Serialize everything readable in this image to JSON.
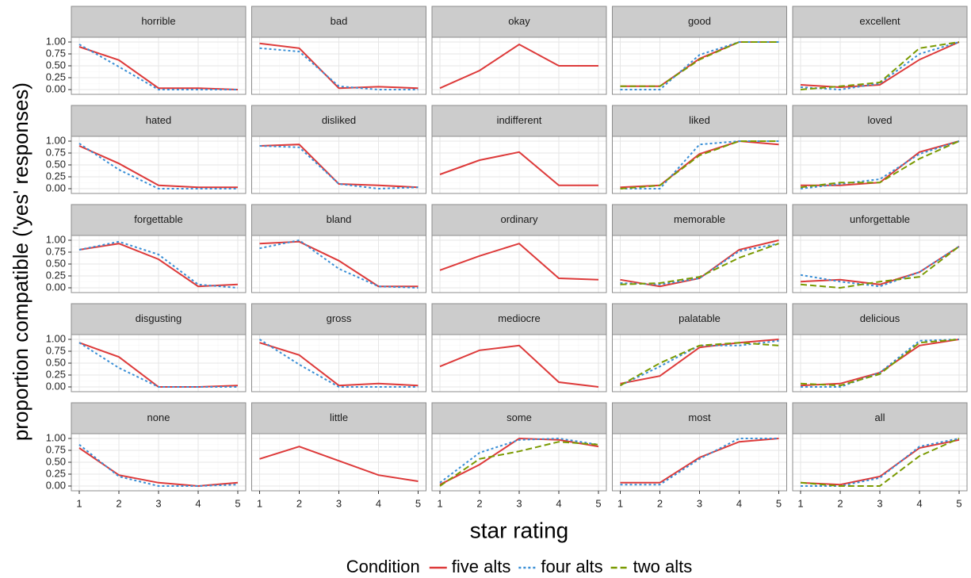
{
  "chart_data": {
    "type": "line",
    "xlabel": "star rating",
    "ylabel": "proportion compatible ('yes' responses)",
    "legend_title": "Condition",
    "x": [
      1,
      2,
      3,
      4,
      5
    ],
    "xlim": [
      0.8,
      5.2
    ],
    "xticks": [
      1,
      2,
      3,
      4,
      5
    ],
    "ylim": [
      -0.1,
      1.1
    ],
    "yticks": [
      {
        "value": 0,
        "label": "0.00"
      },
      {
        "value": 0.25,
        "label": "0.25"
      },
      {
        "value": 0.5,
        "label": "0.50"
      },
      {
        "value": 0.75,
        "label": "0.75"
      },
      {
        "value": 1,
        "label": "1.00"
      }
    ],
    "grid": true,
    "series": [
      {
        "name": "five alts",
        "color": "#dd3a3a",
        "linestyle": "solid"
      },
      {
        "name": "four alts",
        "color": "#3a8fd6",
        "linestyle": "dotted"
      },
      {
        "name": "two alts",
        "color": "#7a9a01",
        "linestyle": "dashed"
      }
    ],
    "facets": [
      {
        "title": "horrible",
        "values": [
          [
            0.9,
            0.62,
            0.03,
            0.03,
            0.0
          ],
          [
            0.95,
            0.48,
            0.0,
            0.0,
            0.0
          ],
          null
        ]
      },
      {
        "title": "bad",
        "values": [
          [
            0.97,
            0.87,
            0.03,
            0.06,
            0.03
          ],
          [
            0.87,
            0.8,
            0.07,
            0.0,
            0.0
          ],
          null
        ]
      },
      {
        "title": "okay",
        "values": [
          [
            0.03,
            0.4,
            0.95,
            0.5,
            0.5
          ],
          null,
          null
        ]
      },
      {
        "title": "good",
        "values": [
          [
            0.07,
            0.07,
            0.65,
            1.0,
            1.0
          ],
          [
            0.0,
            0.0,
            0.73,
            1.0,
            1.0
          ],
          [
            0.07,
            0.07,
            0.63,
            1.0,
            1.0
          ]
        ]
      },
      {
        "title": "excellent",
        "values": [
          [
            0.1,
            0.05,
            0.1,
            0.63,
            1.0
          ],
          [
            0.05,
            0.0,
            0.13,
            0.75,
            1.0
          ],
          [
            0.0,
            0.07,
            0.15,
            0.87,
            1.0
          ]
        ]
      },
      {
        "title": "hated",
        "values": [
          [
            0.9,
            0.53,
            0.07,
            0.03,
            0.03
          ],
          [
            0.95,
            0.4,
            0.0,
            0.0,
            0.0
          ],
          null
        ]
      },
      {
        "title": "disliked",
        "values": [
          [
            0.9,
            0.93,
            0.1,
            0.07,
            0.03
          ],
          [
            0.9,
            0.87,
            0.1,
            0.0,
            0.03
          ],
          null
        ]
      },
      {
        "title": "indifferent",
        "values": [
          [
            0.3,
            0.6,
            0.77,
            0.07,
            0.07
          ],
          null,
          null
        ]
      },
      {
        "title": "liked",
        "values": [
          [
            0.03,
            0.07,
            0.73,
            1.0,
            0.93
          ],
          [
            0.0,
            0.0,
            0.93,
            1.0,
            1.0
          ],
          [
            0.0,
            0.07,
            0.7,
            1.0,
            1.0
          ]
        ]
      },
      {
        "title": "loved",
        "values": [
          [
            0.07,
            0.07,
            0.13,
            0.77,
            1.0
          ],
          [
            0.0,
            0.1,
            0.2,
            0.73,
            1.0
          ],
          [
            0.03,
            0.13,
            0.13,
            0.63,
            1.0
          ]
        ]
      },
      {
        "title": "forgettable",
        "values": [
          [
            0.8,
            0.93,
            0.6,
            0.03,
            0.07
          ],
          [
            0.8,
            0.97,
            0.7,
            0.07,
            0.0
          ],
          null
        ]
      },
      {
        "title": "bland",
        "values": [
          [
            0.93,
            0.97,
            0.57,
            0.03,
            0.03
          ],
          [
            0.83,
            1.0,
            0.4,
            0.03,
            0.0
          ],
          null
        ]
      },
      {
        "title": "ordinary",
        "values": [
          [
            0.37,
            0.67,
            0.93,
            0.2,
            0.17
          ],
          null,
          null
        ]
      },
      {
        "title": "memorable",
        "values": [
          [
            0.17,
            0.03,
            0.2,
            0.8,
            1.0
          ],
          [
            0.1,
            0.07,
            0.2,
            0.77,
            0.93
          ],
          [
            0.07,
            0.1,
            0.23,
            0.63,
            0.93
          ]
        ]
      },
      {
        "title": "unforgettable",
        "values": [
          [
            0.13,
            0.17,
            0.07,
            0.33,
            0.87
          ],
          [
            0.27,
            0.13,
            0.03,
            0.33,
            0.87
          ],
          [
            0.07,
            0.0,
            0.13,
            0.23,
            0.87
          ]
        ]
      },
      {
        "title": "disgusting",
        "values": [
          [
            0.93,
            0.63,
            0.0,
            0.0,
            0.03
          ],
          [
            0.93,
            0.4,
            0.0,
            0.0,
            0.0
          ],
          null
        ]
      },
      {
        "title": "gross",
        "values": [
          [
            0.93,
            0.67,
            0.03,
            0.07,
            0.03
          ],
          [
            1.0,
            0.47,
            0.0,
            0.0,
            0.0
          ],
          null
        ]
      },
      {
        "title": "mediocre",
        "values": [
          [
            0.43,
            0.77,
            0.87,
            0.1,
            0.0
          ],
          null,
          null
        ]
      },
      {
        "title": "palatable",
        "values": [
          [
            0.07,
            0.23,
            0.83,
            0.93,
            1.0
          ],
          [
            0.03,
            0.43,
            0.87,
            0.87,
            0.97
          ],
          [
            0.03,
            0.5,
            0.87,
            0.93,
            0.87
          ]
        ]
      },
      {
        "title": "delicious",
        "values": [
          [
            0.03,
            0.07,
            0.3,
            0.87,
            1.0
          ],
          [
            0.0,
            0.0,
            0.3,
            0.97,
            1.0
          ],
          [
            0.07,
            0.03,
            0.27,
            0.93,
            1.0
          ]
        ]
      },
      {
        "title": "none",
        "values": [
          [
            0.8,
            0.23,
            0.07,
            0.0,
            0.07
          ],
          [
            0.87,
            0.2,
            0.0,
            0.0,
            0.03
          ],
          null
        ]
      },
      {
        "title": "little",
        "values": [
          [
            0.57,
            0.83,
            0.53,
            0.23,
            0.1
          ],
          null,
          null
        ]
      },
      {
        "title": "some",
        "values": [
          [
            0.03,
            0.45,
            1.0,
            0.97,
            0.83
          ],
          [
            0.07,
            0.7,
            0.97,
            1.0,
            0.87
          ],
          [
            0.0,
            0.57,
            0.73,
            0.93,
            0.87
          ]
        ]
      },
      {
        "title": "most",
        "values": [
          [
            0.07,
            0.07,
            0.6,
            0.93,
            1.0
          ],
          [
            0.03,
            0.03,
            0.57,
            1.0,
            1.0
          ],
          null
        ]
      },
      {
        "title": "all",
        "values": [
          [
            0.07,
            0.03,
            0.2,
            0.8,
            0.97
          ],
          [
            0.0,
            0.0,
            0.17,
            0.83,
            1.0
          ],
          [
            0.07,
            0.0,
            0.0,
            0.63,
            1.0
          ]
        ]
      }
    ]
  }
}
